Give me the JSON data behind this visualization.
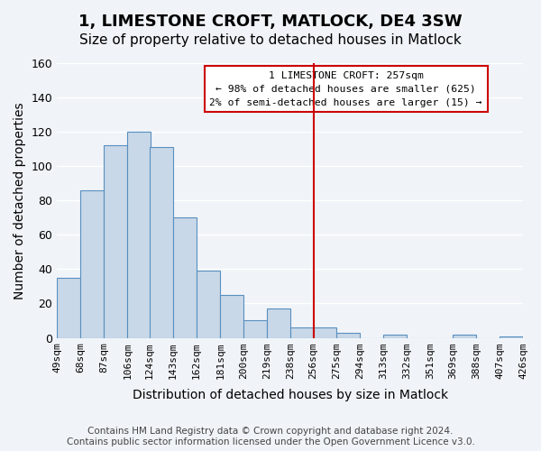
{
  "title": "1, LIMESTONE CROFT, MATLOCK, DE4 3SW",
  "subtitle": "Size of property relative to detached houses in Matlock",
  "xlabel": "Distribution of detached houses by size in Matlock",
  "ylabel": "Number of detached properties",
  "bar_left_edges": [
    49,
    68,
    87,
    106,
    124,
    143,
    162,
    181,
    200,
    219,
    238,
    256,
    275,
    294,
    313,
    332,
    351,
    369,
    388,
    407
  ],
  "bar_heights": [
    35,
    86,
    112,
    120,
    111,
    70,
    39,
    25,
    10,
    17,
    6,
    6,
    3,
    0,
    2,
    0,
    0,
    2,
    0,
    1
  ],
  "bin_width": 19,
  "bar_color": "#c8d8e8",
  "bar_edge_color": "#5a8fc0",
  "vline_x": 257,
  "vline_color": "#cc0000",
  "ylim": [
    0,
    160
  ],
  "xlim": [
    49,
    426
  ],
  "tick_labels": [
    "49sqm",
    "68sqm",
    "87sqm",
    "106sqm",
    "124sqm",
    "143sqm",
    "162sqm",
    "181sqm",
    "200sqm",
    "219sqm",
    "238sqm",
    "256sqm",
    "275sqm",
    "294sqm",
    "313sqm",
    "332sqm",
    "351sqm",
    "369sqm",
    "388sqm",
    "407sqm",
    "426sqm"
  ],
  "tick_positions": [
    49,
    68,
    87,
    106,
    124,
    143,
    162,
    181,
    200,
    219,
    238,
    256,
    275,
    294,
    313,
    332,
    351,
    369,
    388,
    407,
    426
  ],
  "annotation_title": "1 LIMESTONE CROFT: 257sqm",
  "annotation_line1": "← 98% of detached houses are smaller (625)",
  "annotation_line2": "2% of semi-detached houses are larger (15) →",
  "footer_line1": "Contains HM Land Registry data © Crown copyright and database right 2024.",
  "footer_line2": "Contains public sector information licensed under the Open Government Licence v3.0.",
  "bg_color": "#f0f4f8",
  "grid_color": "#ffffff",
  "title_fontsize": 13,
  "subtitle_fontsize": 11,
  "axis_label_fontsize": 10,
  "tick_fontsize": 8,
  "footer_fontsize": 7.5
}
